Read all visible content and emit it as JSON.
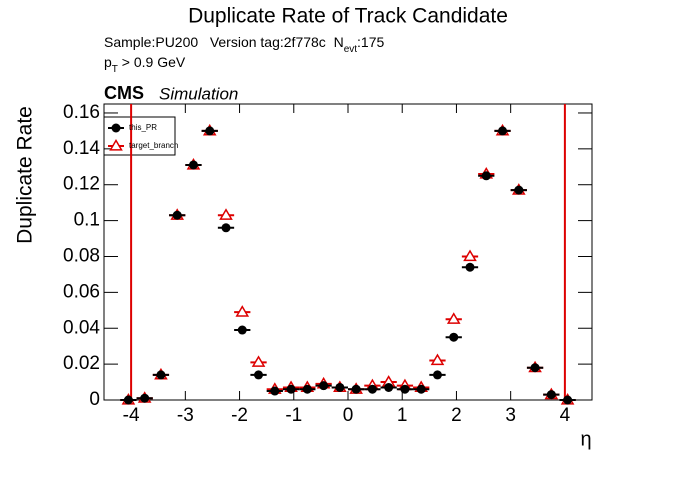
{
  "chart_data": {
    "type": "errorbar",
    "title": "Duplicate Rate of Track Candidate",
    "subtitle_parts": [
      "Sample:PU200   Version tag:2f778c  N",
      "evt",
      ":175"
    ],
    "cut_parts": [
      "p",
      "T",
      " > 0.9 GeV"
    ],
    "experiment": "CMS",
    "experiment_note": "Simulation",
    "y_label": "Duplicate Rate",
    "x_label": "η",
    "x": [
      -4.05,
      -3.75,
      -3.45,
      -3.15,
      -2.85,
      -2.55,
      -2.25,
      -1.95,
      -1.65,
      -1.35,
      -1.05,
      -0.75,
      -0.45,
      -0.15,
      0.15,
      0.45,
      0.75,
      1.05,
      1.35,
      1.65,
      1.95,
      2.25,
      2.55,
      2.85,
      3.15,
      3.45,
      3.75,
      4.05
    ],
    "x_err": 0.15,
    "series": [
      {
        "name": "this_PR",
        "color": "#000000",
        "marker": "circle",
        "values": [
          0,
          0.001,
          0.014,
          0.103,
          0.131,
          0.15,
          0.096,
          0.039,
          0.014,
          0.005,
          0.006,
          0.006,
          0.008,
          0.007,
          0.006,
          0.006,
          0.007,
          0.006,
          0.006,
          0.014,
          0.035,
          0.074,
          0.125,
          0.15,
          0.117,
          0.018,
          0.003,
          0
        ]
      },
      {
        "name": "target_branch",
        "color": "#dd0000",
        "marker": "open-triangle",
        "values": [
          0,
          0.001,
          0.014,
          0.103,
          0.131,
          0.15,
          0.103,
          0.049,
          0.021,
          0.006,
          0.007,
          0.007,
          0.009,
          0.007,
          0.006,
          0.008,
          0.01,
          0.008,
          0.007,
          0.022,
          0.045,
          0.08,
          0.126,
          0.15,
          0.117,
          0.018,
          0.003,
          0
        ]
      }
    ],
    "vlines": [
      -4,
      4
    ],
    "vline_color": "#dd0000",
    "xlim": [
      -4.5,
      4.5
    ],
    "ylim": [
      0,
      0.165
    ],
    "xticks": [
      -4,
      -3,
      -2,
      -1,
      0,
      1,
      2,
      3,
      4
    ],
    "yticks": [
      0,
      0.02,
      0.04,
      0.06,
      0.08,
      0.1,
      0.12,
      0.14,
      0.16
    ],
    "grid": false
  }
}
